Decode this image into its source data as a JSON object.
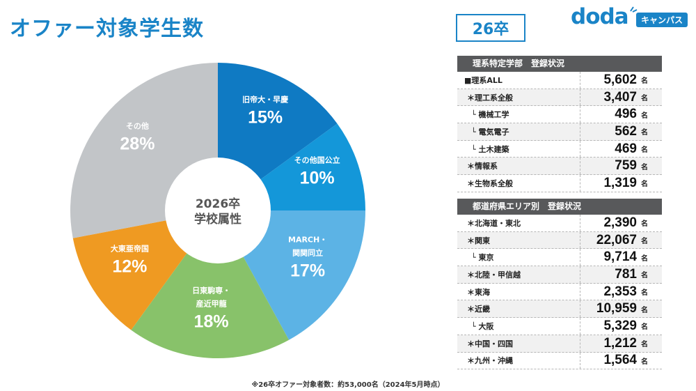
{
  "title": "オファー対象学生数",
  "year_badge": "26卒",
  "logo": {
    "text": "doda",
    "sub": "キャンパス"
  },
  "chart_data": {
    "type": "pie",
    "center_label": [
      "2026卒",
      "学校属性"
    ],
    "slices": [
      {
        "label": "旧帝大・早慶",
        "value": 15,
        "color": "#0f7ac3"
      },
      {
        "label": "その他国公立",
        "value": 10,
        "color": "#1497d9"
      },
      {
        "label": "MARCH・関関同立",
        "value": 17,
        "color": "#5cb3e5"
      },
      {
        "label": "日東駒専・産近甲龍",
        "value": 18,
        "color": "#88c26a"
      },
      {
        "label": "大東亜帝国",
        "value": 12,
        "color": "#ef9a22"
      },
      {
        "label": "その他",
        "value": 28,
        "color": "#c2c5c8"
      }
    ]
  },
  "tables": [
    {
      "header": "理系特定学部　登録状況",
      "rows": [
        {
          "label": "■理系ALL",
          "value": "5,602",
          "unit": "名",
          "level": 0
        },
        {
          "label": "＊理工系全般",
          "value": "3,407",
          "unit": "名",
          "level": 1
        },
        {
          "label": "└ 機械工学",
          "value": "496",
          "unit": "名",
          "level": 2
        },
        {
          "label": "└ 電気電子",
          "value": "562",
          "unit": "名",
          "level": 2
        },
        {
          "label": "└ 土木建築",
          "value": "469",
          "unit": "名",
          "level": 2
        },
        {
          "label": "＊情報系",
          "value": "759",
          "unit": "名",
          "level": 1
        },
        {
          "label": "＊生物系全般",
          "value": "1,319",
          "unit": "名",
          "level": 1
        }
      ]
    },
    {
      "header": "都道府県エリア別　登録状況",
      "rows": [
        {
          "label": "＊北海道・東北",
          "value": "2,390",
          "unit": "名",
          "level": 1
        },
        {
          "label": "＊関東",
          "value": "22,067",
          "unit": "名",
          "level": 1
        },
        {
          "label": "└ 東京",
          "value": "9,714",
          "unit": "名",
          "level": 2
        },
        {
          "label": "＊北陸・甲信越",
          "value": "781",
          "unit": "名",
          "level": 1
        },
        {
          "label": "＊東海",
          "value": "2,353",
          "unit": "名",
          "level": 1
        },
        {
          "label": "＊近畿",
          "value": "10,959",
          "unit": "名",
          "level": 1
        },
        {
          "label": "└ 大阪",
          "value": "5,329",
          "unit": "名",
          "level": 2
        },
        {
          "label": "＊中国・四国",
          "value": "1,212",
          "unit": "名",
          "level": 1
        },
        {
          "label": "＊九州・沖縄",
          "value": "1,564",
          "unit": "名",
          "level": 1
        }
      ]
    }
  ],
  "footnote": "※26卒オファー対象者数：約53,000名（2024年5月時点）"
}
